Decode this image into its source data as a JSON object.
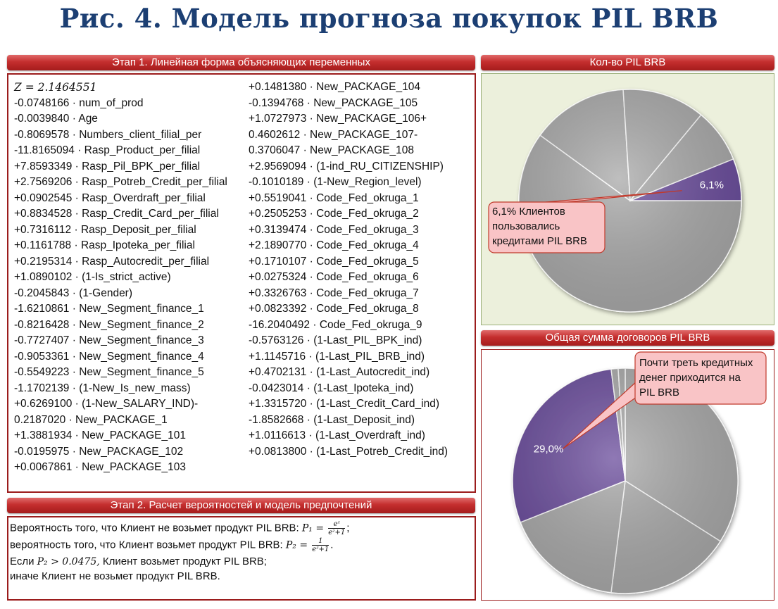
{
  "title": "Рис. 4. Модель прогноза покупок PIL BRB",
  "stage1": {
    "header": "Этап 1. Линейная форма объясняющих переменных",
    "col1": [
      "𝑍 = 2.1464551",
      "-0.0748166 · num_of_prod",
      "-0.0039840 · Age",
      "-0.8069578 · Numbers_client_filial_per",
      "-11.8165094 · Rasp_Product_per_filial",
      "+7.8593349 · Rasp_Pil_BPK_per_filial",
      "+2.7569206 · Rasp_Potreb_Credit_per_filial",
      "+0.0902545 · Rasp_Overdraft_per_filial",
      "+0.8834528 · Rasp_Credit_Card_per_filial",
      "+0.7316112 · Rasp_Deposit_per_filial",
      "+0.1161788 · Rasp_Ipoteka_per_filial",
      "+0.2195314 · Rasp_Autocredit_per_filial",
      "+1.0890102 · (1-Is_strict_active)",
      "-0.2045843 · (1-Gender)",
      "-1.6210861 · New_Segment_finance_1",
      "-0.8216428 · New_Segment_finance_2",
      "-0.7727407 · New_Segment_finance_3",
      "-0.9053361 · New_Segment_finance_4",
      "-0.5549223 · New_Segment_finance_5",
      "-1.1702139 · (1-New_Is_new_mass)",
      "+0.6269100 · (1-New_SALARY_IND)-",
      "0.2187020 · New_PACKAGE_1",
      "+1.3881934 · New_PACKAGE_101",
      "-0.0195975 · New_PACKAGE_102",
      "+0.0067861 · New_PACKAGE_103"
    ],
    "col2": [
      "+0.1481380 · New_PACKAGE_104",
      "-0.1394768 · New_PACKAGE_105",
      "+1.0727973 · New_PACKAGE_106+",
      "0.4602612 · New_PACKAGE_107-",
      "0.3706047 · New_PACKAGE_108",
      "+2.9569094 · (1-ind_RU_CITIZENSHIP)",
      "-0.1010189 · (1-New_Region_level)",
      "+0.5519041 · Code_Fed_okruga_1",
      "+0.2505253 · Code_Fed_okruga_2",
      "+0.3139474 · Code_Fed_okruga_3",
      "+2.1890770 · Code_Fed_okruga_4",
      "+0.1710107 · Code_Fed_okruga_5",
      "+0.0275324 · Code_Fed_okruga_6",
      "+0.3326763 · Code_Fed_okruga_7",
      "+0.0823392 · Code_Fed_okruga_8",
      "-16.2040492 · Code_Fed_okruga_9",
      "-0.5763126 · (1-Last_PIL_BPK_ind)",
      "+1.1145716 · (1-Last_PIL_BRB_ind)",
      "+0.4702131 · (1-Last_Autocredit_ind)",
      "-0.0423014 · (1-Last_Ipoteka_ind)",
      "+1.3315720 · (1-Last_Credit_Card_ind)",
      "-1.8582668 · (1-Last_Deposit_ind)",
      "+1.0116613 · (1-Last_Overdraft_ind)",
      "+0.0813800 · (1-Last_Potreb_Credit_ind)"
    ]
  },
  "stage2": {
    "header": "Этап 2. Расчет вероятностей и модель предпочтений",
    "line1": "Вероятность того, что Клиент не возьмет продукт PIL BRB:",
    "p1": "𝑃₁ =",
    "p1_num": "eᶻ",
    "p1_den": "eᶻ+1",
    "line2": "вероятность того, что Клиент возьмет продукт PIL BRB:",
    "p2": "𝑃₂ =",
    "p2_num": "1",
    "p2_den": "eᶻ+1",
    "line3a": "Если",
    "line3cond": "𝑃₂ > 0.0475,",
    "line3b": "Клиент возьмет продукт PIL BRB;",
    "line4": "иначе Клиент не возьмет продукт PIL BRB."
  },
  "chart_data": [
    {
      "type": "pie",
      "title": "Кол-во PIL BRB",
      "slices": [
        {
          "label": "",
          "value": 60.0,
          "color": "#a9a9a9"
        },
        {
          "label": "",
          "value": 14.0,
          "color": "#a9a9a9"
        },
        {
          "label": "",
          "value": 12.0,
          "color": "#a9a9a9"
        },
        {
          "label": "",
          "value": 7.9,
          "color": "#a9a9a9"
        },
        {
          "label": "6,1%",
          "value": 6.1,
          "color": "#6a4c9c",
          "highlight": true
        }
      ],
      "annotation": "6,1% Клиентов пользовались кредитами PIL BRB",
      "annotation_lines": [
        "6,1% Клиентов",
        "пользовались",
        "кредитами PIL BRB"
      ]
    },
    {
      "type": "pie",
      "title": "Общая сумма договоров PIL BRB",
      "slices": [
        {
          "label": "",
          "value": 34.0,
          "color": "#a9a9a9"
        },
        {
          "label": "",
          "value": 18.0,
          "color": "#a9a9a9"
        },
        {
          "label": "",
          "value": 17.0,
          "color": "#a9a9a9"
        },
        {
          "label": "29,0%",
          "value": 29.0,
          "color": "#6a4c9c",
          "highlight": true
        },
        {
          "label": "",
          "value": 1.0,
          "color": "#a9a9a9"
        },
        {
          "label": "",
          "value": 1.0,
          "color": "#a9a9a9"
        }
      ],
      "annotation": "Почти треть кредитных денег приходится на PIL BRB",
      "annotation_lines": [
        "Почти треть кредитных",
        "денег приходится на",
        "PIL BRB"
      ]
    }
  ]
}
